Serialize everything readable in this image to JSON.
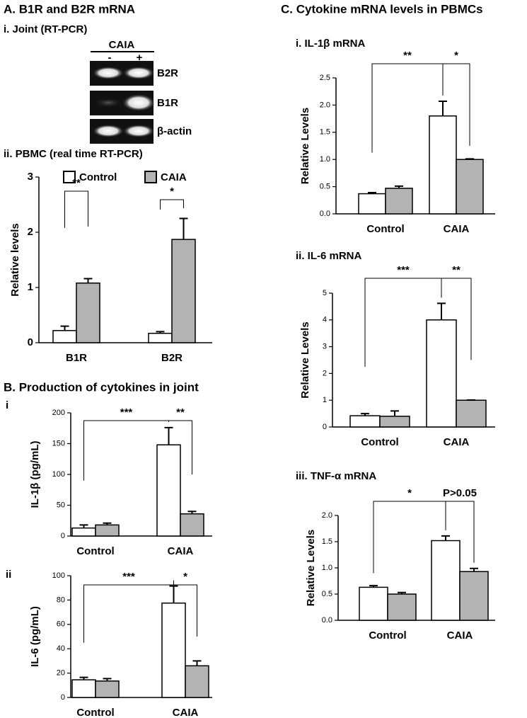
{
  "headings": [
    "A. B1R and B2R mRNA",
    "i. Joint (RT-PCR)",
    "B. Production of cytokines in joint",
    "C. Cytokine mRNA levels in PBMCs"
  ],
  "gel": {
    "group": "CAIA",
    "lanes": [
      "-",
      "+"
    ],
    "bands": [
      "B2R",
      "B1R",
      "β-actin"
    ]
  },
  "chart_data": [
    {
      "type": "bar",
      "title": "ii. PBMC (real time RT-PCR)",
      "ylabel": "Relative levels",
      "categories": [
        "B1R",
        "B2R"
      ],
      "series": [
        {
          "name": "Control",
          "color": "#ffffff",
          "values": [
            0.22,
            0.17
          ],
          "errors": [
            0.08,
            0.03
          ]
        },
        {
          "name": "CAIA",
          "color": "#b3b3b3",
          "values": [
            1.08,
            1.87
          ],
          "errors": [
            0.08,
            0.38
          ]
        }
      ],
      "ylim": [
        0,
        3
      ],
      "yticks": [
        0,
        1,
        2,
        3
      ],
      "legend": "top",
      "annotations": [
        "**",
        "*"
      ]
    },
    {
      "type": "bar",
      "title": "i",
      "ylabel": "IL-1β (pg/mL)",
      "categories": [
        "Control",
        "CAIA"
      ],
      "series": [
        {
          "color": "#ffffff",
          "values": [
            13,
            148
          ],
          "errors": [
            5,
            28
          ]
        },
        {
          "color": "#b3b3b3",
          "values": [
            18,
            36
          ],
          "errors": [
            3,
            4
          ]
        }
      ],
      "ylim": [
        0,
        200
      ],
      "yticks": [
        0,
        50,
        100,
        150,
        200
      ],
      "annotations": [
        "***",
        "**"
      ]
    },
    {
      "type": "bar",
      "title": "ii",
      "ylabel": "IL-6 (pg/mL)",
      "categories": [
        "Control",
        "CAIA"
      ],
      "series": [
        {
          "color": "#ffffff",
          "values": [
            14.5,
            77.5
          ],
          "errors": [
            2,
            14
          ]
        },
        {
          "color": "#b3b3b3",
          "values": [
            13.5,
            26
          ],
          "errors": [
            2,
            4
          ]
        }
      ],
      "ylim": [
        0,
        100
      ],
      "yticks": [
        0,
        20,
        40,
        60,
        80,
        100
      ],
      "annotations": [
        "***",
        "*"
      ]
    },
    {
      "type": "bar",
      "title": "i. IL-1β mRNA",
      "ylabel": "Relative Levels",
      "categories": [
        "Control",
        "CAIA"
      ],
      "series": [
        {
          "color": "#ffffff",
          "values": [
            0.37,
            1.8
          ],
          "errors": [
            0.02,
            0.27
          ]
        },
        {
          "color": "#b3b3b3",
          "values": [
            0.47,
            1.0
          ],
          "errors": [
            0.04,
            0.01
          ]
        }
      ],
      "ylim": [
        0,
        2.5
      ],
      "yticks": [
        {
          "value": 0,
          "label": "0.0"
        },
        0.5,
        {
          "value": 1,
          "label": "1.0"
        },
        1.5,
        {
          "value": 2,
          "label": "2.0"
        },
        2.5
      ],
      "annotations": [
        "**",
        "*"
      ]
    },
    {
      "type": "bar",
      "title": "ii. IL-6 mRNA",
      "ylabel": "Relative Levels",
      "categories": [
        "Control",
        "CAIA"
      ],
      "series": [
        {
          "color": "#ffffff",
          "values": [
            0.42,
            4.0
          ],
          "errors": [
            0.08,
            0.62
          ]
        },
        {
          "color": "#b3b3b3",
          "values": [
            0.4,
            1.0
          ],
          "errors": [
            0.2,
            0.01
          ]
        }
      ],
      "ylim": [
        0,
        5
      ],
      "yticks": [
        0,
        1,
        2,
        3,
        4,
        5
      ],
      "annotations": [
        "***",
        "**"
      ]
    },
    {
      "type": "bar",
      "title": "iii. TNF-α mRNA",
      "ylabel": "Relative Levels",
      "categories": [
        "Control",
        "CAIA"
      ],
      "series": [
        {
          "color": "#ffffff",
          "values": [
            0.63,
            1.52
          ],
          "errors": [
            0.03,
            0.09
          ]
        },
        {
          "color": "#b3b3b3",
          "values": [
            0.5,
            0.93
          ],
          "errors": [
            0.03,
            0.06
          ]
        }
      ],
      "ylim": [
        0,
        2
      ],
      "yticks": [
        {
          "value": 0,
          "label": "0.0"
        },
        0.5,
        {
          "value": 1,
          "label": "1.0"
        },
        1.5,
        {
          "value": 2,
          "label": "2.0"
        }
      ],
      "annotations": [
        "*",
        "P>0.05"
      ]
    }
  ]
}
